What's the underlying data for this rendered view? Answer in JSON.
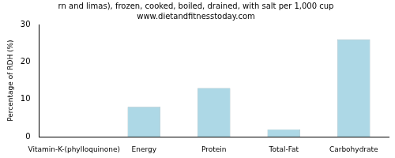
{
  "chart_data": {
    "type": "bar",
    "title": "rn and limas), frozen, cooked, boiled, drained, with salt per 1,000 cup",
    "subtitle": "www.dietandfitnesstoday.com",
    "ylabel": "Percentage of RDH (%)",
    "categories": [
      "Vitamin-K-(phylloquinone)",
      "Energy",
      "Protein",
      "Total-Fat",
      "Carbohydrate"
    ],
    "values": [
      0,
      8,
      13,
      2,
      26
    ],
    "color": "#add8e6",
    "ylim": [
      0,
      30
    ],
    "yticks": [
      0,
      10,
      20,
      30
    ],
    "grid": false
  }
}
